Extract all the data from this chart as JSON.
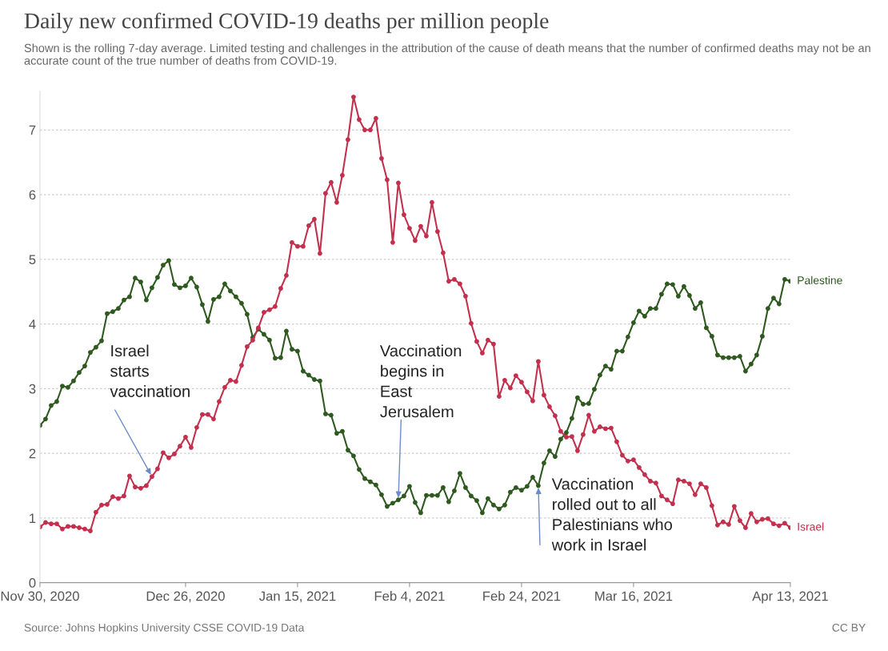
{
  "chart_data": {
    "type": "line",
    "title": "Daily new confirmed COVID-19 deaths per million people",
    "subtitle": "Shown is the rolling 7-day average. Limited testing and challenges in the attribution of the cause of death means that the number of confirmed deaths may not be an accurate count of the true number of deaths from COVID-19.",
    "x": [
      "2020-11-30",
      "2020-12-01",
      "2020-12-02",
      "2020-12-03",
      "2020-12-04",
      "2020-12-05",
      "2020-12-06",
      "2020-12-07",
      "2020-12-08",
      "2020-12-09",
      "2020-12-10",
      "2020-12-11",
      "2020-12-12",
      "2020-12-13",
      "2020-12-14",
      "2020-12-15",
      "2020-12-16",
      "2020-12-17",
      "2020-12-18",
      "2020-12-19",
      "2020-12-20",
      "2020-12-21",
      "2020-12-22",
      "2020-12-23",
      "2020-12-24",
      "2020-12-25",
      "2020-12-26",
      "2020-12-27",
      "2020-12-28",
      "2020-12-29",
      "2020-12-30",
      "2020-12-31",
      "2021-01-01",
      "2021-01-02",
      "2021-01-03",
      "2021-01-04",
      "2021-01-05",
      "2021-01-06",
      "2021-01-07",
      "2021-01-08",
      "2021-01-09",
      "2021-01-10",
      "2021-01-11",
      "2021-01-12",
      "2021-01-13",
      "2021-01-14",
      "2021-01-15",
      "2021-01-16",
      "2021-01-17",
      "2021-01-18",
      "2021-01-19",
      "2021-01-20",
      "2021-01-21",
      "2021-01-22",
      "2021-01-23",
      "2021-01-24",
      "2021-01-25",
      "2021-01-26",
      "2021-01-27",
      "2021-01-28",
      "2021-01-29",
      "2021-01-30",
      "2021-01-31",
      "2021-02-01",
      "2021-02-02",
      "2021-02-03",
      "2021-02-04",
      "2021-02-05",
      "2021-02-06",
      "2021-02-07",
      "2021-02-08",
      "2021-02-09",
      "2021-02-10",
      "2021-02-11",
      "2021-02-12",
      "2021-02-13",
      "2021-02-14",
      "2021-02-15",
      "2021-02-16",
      "2021-02-17",
      "2021-02-18",
      "2021-02-19",
      "2021-02-20",
      "2021-02-21",
      "2021-02-22",
      "2021-02-23",
      "2021-02-24",
      "2021-02-25",
      "2021-02-26",
      "2021-02-27",
      "2021-02-28",
      "2021-03-01",
      "2021-03-02",
      "2021-03-03",
      "2021-03-04",
      "2021-03-05",
      "2021-03-06",
      "2021-03-07",
      "2021-03-08",
      "2021-03-09",
      "2021-03-10",
      "2021-03-11",
      "2021-03-12",
      "2021-03-13",
      "2021-03-14",
      "2021-03-15",
      "2021-03-16",
      "2021-03-17",
      "2021-03-18",
      "2021-03-19",
      "2021-03-20",
      "2021-03-21",
      "2021-03-22",
      "2021-03-23",
      "2021-03-24",
      "2021-03-25",
      "2021-03-26",
      "2021-03-27",
      "2021-03-28",
      "2021-03-29",
      "2021-03-30",
      "2021-03-31",
      "2021-04-01",
      "2021-04-02",
      "2021-04-03",
      "2021-04-04",
      "2021-04-05",
      "2021-04-06",
      "2021-04-07",
      "2021-04-08",
      "2021-04-09",
      "2021-04-10",
      "2021-04-11",
      "2021-04-12",
      "2021-04-13"
    ],
    "series": [
      {
        "name": "Palestine",
        "color": "#2f5a1f",
        "values": [
          2.43,
          2.53,
          2.74,
          2.8,
          3.04,
          3.02,
          3.12,
          3.25,
          3.35,
          3.56,
          3.64,
          3.74,
          4.16,
          4.19,
          4.24,
          4.37,
          4.42,
          4.71,
          4.65,
          4.37,
          4.56,
          4.72,
          4.91,
          4.98,
          4.61,
          4.56,
          4.59,
          4.71,
          4.57,
          4.3,
          4.04,
          4.38,
          4.42,
          4.62,
          4.51,
          4.42,
          4.32,
          4.15,
          3.79,
          3.92,
          3.84,
          3.75,
          3.47,
          3.48,
          3.89,
          3.61,
          3.58,
          3.27,
          3.21,
          3.14,
          3.12,
          2.61,
          2.59,
          2.31,
          2.34,
          2.05,
          1.96,
          1.75,
          1.61,
          1.56,
          1.51,
          1.36,
          1.18,
          1.23,
          1.28,
          1.34,
          1.49,
          1.24,
          1.08,
          1.35,
          1.35,
          1.35,
          1.47,
          1.25,
          1.42,
          1.69,
          1.47,
          1.34,
          1.27,
          1.08,
          1.3,
          1.2,
          1.14,
          1.2,
          1.4,
          1.47,
          1.43,
          1.49,
          1.63,
          1.5,
          1.85,
          2.04,
          1.95,
          2.22,
          2.32,
          2.54,
          2.86,
          2.76,
          2.77,
          2.99,
          3.21,
          3.35,
          3.3,
          3.58,
          3.58,
          3.8,
          4.02,
          4.2,
          4.12,
          4.24,
          4.24,
          4.46,
          4.62,
          4.61,
          4.43,
          4.58,
          4.44,
          4.24,
          4.33,
          3.94,
          3.81,
          3.52,
          3.48,
          3.48,
          3.48,
          3.5,
          3.27,
          3.38,
          3.52,
          3.81,
          4.24,
          4.4,
          4.31,
          4.69,
          4.66
        ]
      },
      {
        "name": "Israel",
        "color": "#c3304d",
        "values": [
          0.86,
          0.93,
          0.91,
          0.91,
          0.83,
          0.87,
          0.87,
          0.85,
          0.83,
          0.8,
          1.09,
          1.2,
          1.21,
          1.33,
          1.3,
          1.34,
          1.65,
          1.48,
          1.46,
          1.5,
          1.64,
          1.76,
          2.01,
          1.93,
          1.99,
          2.11,
          2.25,
          2.09,
          2.4,
          2.6,
          2.6,
          2.53,
          2.8,
          3.02,
          3.13,
          3.11,
          3.36,
          3.65,
          3.75,
          3.94,
          4.18,
          4.22,
          4.27,
          4.55,
          4.75,
          5.26,
          5.2,
          5.2,
          5.52,
          5.62,
          5.09,
          6.02,
          6.19,
          5.88,
          6.3,
          6.85,
          7.51,
          7.16,
          7.0,
          7.0,
          7.18,
          6.56,
          6.23,
          5.26,
          6.18,
          5.69,
          5.48,
          5.29,
          5.51,
          5.36,
          5.88,
          5.43,
          5.1,
          4.66,
          4.69,
          4.62,
          4.43,
          4.01,
          3.73,
          3.55,
          3.75,
          3.69,
          2.88,
          3.13,
          3.01,
          3.2,
          3.1,
          2.95,
          2.81,
          3.42,
          2.9,
          2.72,
          2.58,
          2.34,
          2.25,
          2.26,
          2.04,
          2.29,
          2.59,
          2.34,
          2.41,
          2.38,
          2.39,
          2.18,
          1.97,
          1.88,
          1.9,
          1.78,
          1.67,
          1.57,
          1.54,
          1.34,
          1.28,
          1.22,
          1.59,
          1.57,
          1.53,
          1.36,
          1.53,
          1.47,
          1.19,
          0.89,
          0.94,
          0.9,
          1.18,
          0.96,
          0.85,
          1.07,
          0.94,
          0.98,
          0.99,
          0.91,
          0.88,
          0.92,
          0.85
        ]
      }
    ],
    "xlim": [
      "2020-11-30",
      "2021-04-13"
    ],
    "xticks": [
      {
        "value": "2020-11-30",
        "label": "Nov 30, 2020"
      },
      {
        "value": "2020-12-26",
        "label": "Dec 26, 2020"
      },
      {
        "value": "2021-01-15",
        "label": "Jan 15, 2021"
      },
      {
        "value": "2021-02-04",
        "label": "Feb 4, 2021"
      },
      {
        "value": "2021-02-24",
        "label": "Feb 24, 2021"
      },
      {
        "value": "2021-03-16",
        "label": "Mar 16, 2021"
      },
      {
        "value": "2021-04-13",
        "label": "Apr 13, 2021"
      }
    ],
    "ylim": [
      0,
      7.6
    ],
    "yticks": [
      0,
      1,
      2,
      3,
      4,
      5,
      6,
      7
    ],
    "grid": "y",
    "legend": false,
    "marker": "circle",
    "line_style": "solid",
    "annotations": [
      {
        "text": "Israel\nstarts\nvaccination",
        "x": "2020-12-20",
        "y": 1.64
      },
      {
        "text": "Vaccination\nbegins in\nEast\nJerusalem",
        "x": "2021-02-02",
        "y": 1.28
      },
      {
        "text": "Vaccination\nrolled out to all\nPalestinians who\nwork in Israel",
        "x": "2021-02-27",
        "y": 1.5
      },
      "Source: Johns Hopkins University CSSE COVID-19 Data",
      "CC BY"
    ]
  }
}
